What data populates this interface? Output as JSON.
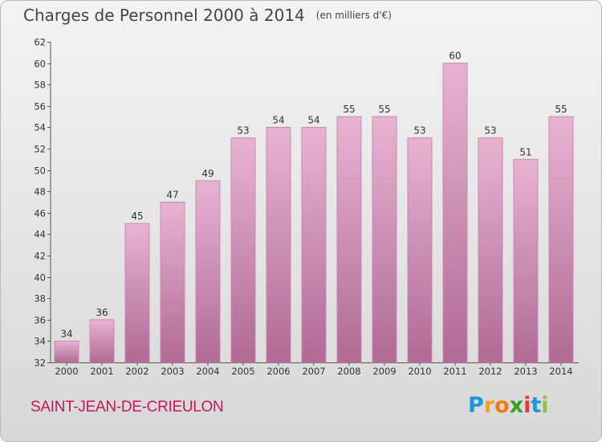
{
  "title": "Charges de Personnel 2000 à 2014",
  "subtitle": "(en milliers d'€)",
  "commune": "SAINT-JEAN-DE-CRIEULON",
  "logo": {
    "letters": [
      "P",
      "r",
      "o",
      "x",
      "i",
      "t",
      "i"
    ],
    "colors": [
      "#2196d6",
      "#f7a21b",
      "#f07a12",
      "#3a9d23",
      "#e53935",
      "#2196d6",
      "#8bc34a"
    ]
  },
  "colors": {
    "bar_top": "#e8b3d3",
    "bar_bottom": "#b06a94",
    "bar_edge": "#c48aac",
    "axis": "#555555",
    "text": "#333333"
  },
  "chart_data": {
    "type": "bar",
    "categories": [
      "2000",
      "2001",
      "2002",
      "2003",
      "2004",
      "2005",
      "2006",
      "2007",
      "2008",
      "2009",
      "2010",
      "2011",
      "2012",
      "2013",
      "2014"
    ],
    "values": [
      34,
      36,
      45,
      47,
      49,
      53,
      54,
      54,
      55,
      55,
      53,
      60,
      53,
      51,
      55
    ],
    "ylim": [
      32,
      62
    ],
    "yticks": [
      32,
      34,
      36,
      38,
      40,
      42,
      44,
      46,
      48,
      50,
      52,
      54,
      56,
      58,
      60,
      62
    ],
    "grid": false,
    "data_labels": true
  }
}
